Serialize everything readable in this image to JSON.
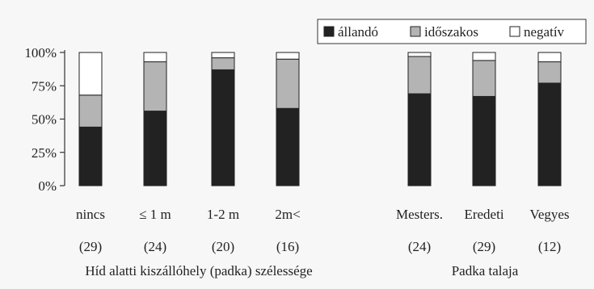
{
  "chart_data": {
    "type": "bar",
    "stacked": true,
    "normalized": true,
    "ylim": [
      0,
      100
    ],
    "yticks": [
      {
        "value": 0,
        "label": "0%"
      },
      {
        "value": 25,
        "label": "25%"
      },
      {
        "value": 50,
        "label": "50%"
      },
      {
        "value": 75,
        "label": "75%"
      },
      {
        "value": 100,
        "label": "100%"
      }
    ],
    "legend_position": "top-right",
    "grid": false,
    "series": [
      {
        "name": "állandó",
        "color": "#222222"
      },
      {
        "name": "időszakos",
        "color": "#b4b4b4"
      },
      {
        "name": "negatív",
        "color": "#ffffff"
      }
    ],
    "groups": [
      {
        "label": "Híd alatti kiszállóhely (padka) szélessége",
        "categories": [
          {
            "label": "nincs",
            "n": "(29)",
            "values": [
              44,
              24,
              32
            ]
          },
          {
            "label": "≤ 1 m",
            "n": "(24)",
            "values": [
              56,
              37,
              7
            ]
          },
          {
            "label": "1-2 m",
            "n": "(20)",
            "values": [
              87,
              9,
              4
            ]
          },
          {
            "label": "2m<",
            "n": "(16)",
            "values": [
              58,
              37,
              5
            ]
          }
        ]
      },
      {
        "label": "Padka talaja",
        "categories": [
          {
            "label": "Mesters.",
            "n": "(24)",
            "values": [
              69,
              28,
              3
            ]
          },
          {
            "label": "Eredeti",
            "n": "(29)",
            "values": [
              67,
              27,
              6
            ]
          },
          {
            "label": "Vegyes",
            "n": "(12)",
            "values": [
              77,
              16,
              7
            ]
          }
        ]
      }
    ]
  }
}
